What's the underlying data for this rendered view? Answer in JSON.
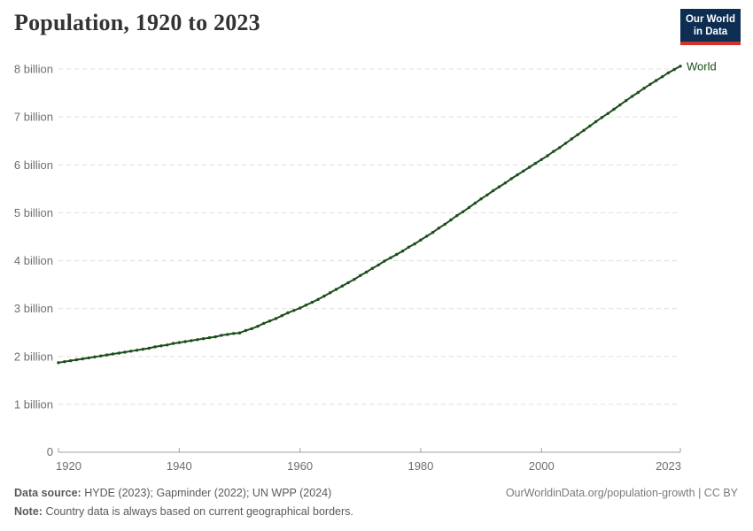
{
  "header": {
    "title": "Population, 1920 to 2023",
    "logo_line1": "Our World",
    "logo_line2": "in Data"
  },
  "chart_data": {
    "type": "line",
    "title": "Population, 1920 to 2023",
    "xlabel": "",
    "ylabel": "",
    "xlim": [
      1920,
      2023
    ],
    "ylim": [
      0,
      8000000000
    ],
    "grid": "horizontal-dashed",
    "legend_position": "end-of-line-label",
    "unit": "billion people",
    "x": [
      1920,
      1921,
      1922,
      1923,
      1924,
      1925,
      1926,
      1927,
      1928,
      1929,
      1930,
      1931,
      1932,
      1933,
      1934,
      1935,
      1936,
      1937,
      1938,
      1939,
      1940,
      1941,
      1942,
      1943,
      1944,
      1945,
      1946,
      1947,
      1948,
      1949,
      1950,
      1951,
      1952,
      1953,
      1954,
      1955,
      1956,
      1957,
      1958,
      1959,
      1960,
      1961,
      1962,
      1963,
      1964,
      1965,
      1966,
      1967,
      1968,
      1969,
      1970,
      1971,
      1972,
      1973,
      1974,
      1975,
      1976,
      1977,
      1978,
      1979,
      1980,
      1981,
      1982,
      1983,
      1984,
      1985,
      1986,
      1987,
      1988,
      1989,
      1990,
      1991,
      1992,
      1993,
      1994,
      1995,
      1996,
      1997,
      1998,
      1999,
      2000,
      2001,
      2002,
      2003,
      2004,
      2005,
      2006,
      2007,
      2008,
      2009,
      2010,
      2011,
      2012,
      2013,
      2014,
      2015,
      2016,
      2017,
      2018,
      2019,
      2020,
      2021,
      2022,
      2023
    ],
    "series": [
      {
        "name": "World",
        "end_label": "World",
        "values_billions": [
          1.87,
          1.89,
          1.91,
          1.93,
          1.95,
          1.97,
          1.99,
          2.01,
          2.03,
          2.05,
          2.07,
          2.09,
          2.11,
          2.13,
          2.15,
          2.17,
          2.2,
          2.22,
          2.24,
          2.27,
          2.29,
          2.31,
          2.33,
          2.35,
          2.37,
          2.39,
          2.41,
          2.44,
          2.46,
          2.48,
          2.49,
          2.54,
          2.58,
          2.63,
          2.69,
          2.74,
          2.79,
          2.85,
          2.91,
          2.96,
          3.01,
          3.07,
          3.13,
          3.19,
          3.26,
          3.33,
          3.4,
          3.47,
          3.54,
          3.61,
          3.69,
          3.76,
          3.84,
          3.91,
          3.99,
          4.06,
          4.13,
          4.2,
          4.28,
          4.35,
          4.43,
          4.51,
          4.59,
          4.68,
          4.76,
          4.85,
          4.94,
          5.02,
          5.11,
          5.2,
          5.29,
          5.37,
          5.46,
          5.54,
          5.62,
          5.71,
          5.79,
          5.87,
          5.95,
          6.03,
          6.11,
          6.19,
          6.28,
          6.36,
          6.45,
          6.54,
          6.63,
          6.72,
          6.81,
          6.9,
          6.99,
          7.07,
          7.16,
          7.25,
          7.34,
          7.43,
          7.51,
          7.6,
          7.68,
          7.76,
          7.84,
          7.92,
          7.99,
          8.06
        ],
        "markers": "dot-every-year"
      }
    ],
    "y_ticks": [
      {
        "value": 0,
        "label": "0"
      },
      {
        "value": 1,
        "label": "1 billion"
      },
      {
        "value": 2,
        "label": "2 billion"
      },
      {
        "value": 3,
        "label": "3 billion"
      },
      {
        "value": 4,
        "label": "4 billion"
      },
      {
        "value": 5,
        "label": "5 billion"
      },
      {
        "value": 6,
        "label": "6 billion"
      },
      {
        "value": 7,
        "label": "7 billion"
      },
      {
        "value": 8,
        "label": "8 billion"
      }
    ],
    "x_ticks": [
      {
        "value": 1920,
        "label": "1920"
      },
      {
        "value": 1940,
        "label": "1940"
      },
      {
        "value": 1960,
        "label": "1960"
      },
      {
        "value": 1980,
        "label": "1980"
      },
      {
        "value": 2000,
        "label": "2000"
      },
      {
        "value": 2023,
        "label": "2023"
      }
    ]
  },
  "footer": {
    "data_source_label": "Data source:",
    "data_source_value": "HYDE (2023); Gapminder (2022); UN WPP (2024)",
    "note_label": "Note:",
    "note_value": "Country data is always based on current geographical borders.",
    "attribution": "OurWorldinData.org/population-growth | CC BY"
  },
  "colors": {
    "line": "#1d4e1b",
    "grid": "#dedede",
    "axis": "#a1a1a1",
    "tick_label": "#6e6e6e",
    "title_text": "#333333",
    "logo_bg": "#0d2d52",
    "logo_stripe": "#d0342a",
    "footer_text": "#5a5a5a",
    "attribution_text": "#7a7a7a"
  }
}
